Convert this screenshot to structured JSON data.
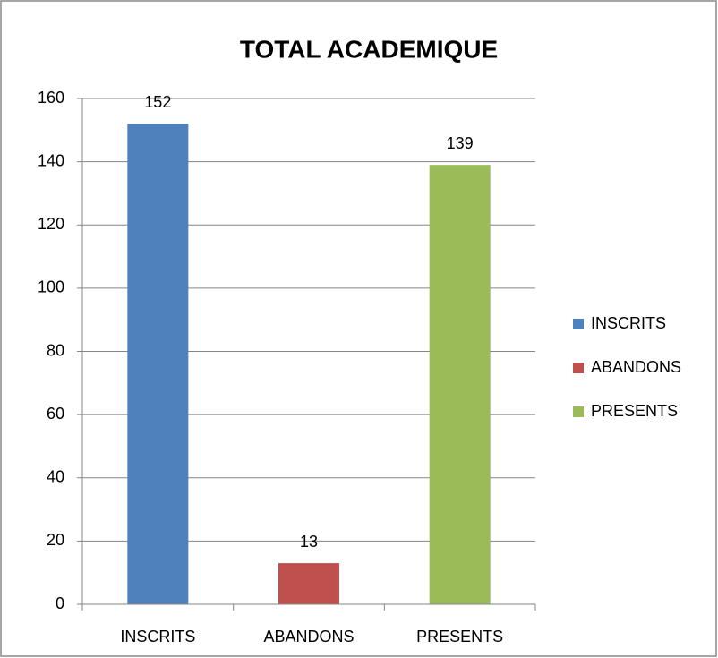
{
  "chart_data": {
    "type": "bar",
    "title": "TOTAL ACADEMIQUE",
    "categories": [
      "INSCRITS",
      "ABANDONS",
      "PRESENTS"
    ],
    "values": [
      152,
      13,
      139
    ],
    "colors": [
      "#4f81bd",
      "#c0504d",
      "#9bbb59"
    ],
    "ylim": [
      0,
      160
    ],
    "yticks": [
      0,
      20,
      40,
      60,
      80,
      100,
      120,
      140,
      160
    ],
    "grid": true,
    "legend": "right"
  }
}
